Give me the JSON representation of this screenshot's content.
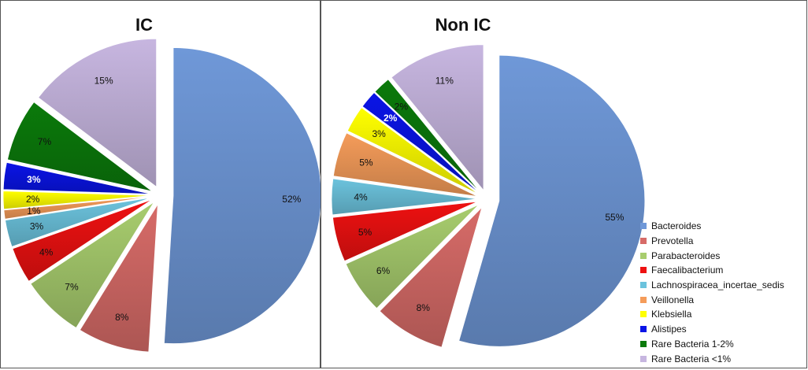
{
  "chart_data": [
    {
      "type": "pie",
      "title": "IC",
      "categories": [
        "Bacteroides",
        "Prevotella",
        "Parabacteroides",
        "Faecalibacterium",
        "Lachnospiracea_incertae_sedis",
        "Veillonella",
        "Klebsiella",
        "Alistipes",
        "Rare Bacteria 1-2%",
        "Rare Bacteria <1%"
      ],
      "values": [
        52,
        8,
        7,
        4,
        3,
        1,
        2,
        3,
        7,
        15
      ],
      "labels": [
        "52%",
        "8%",
        "7%",
        "4%",
        "3%",
        "1%",
        "2%",
        "3%",
        "7%",
        "15%"
      ],
      "exploded": true
    },
    {
      "type": "pie",
      "title": "Non IC",
      "categories": [
        "Bacteroides",
        "Prevotella",
        "Parabacteroides",
        "Faecalibacterium",
        "Lachnospiracea_incertae_sedis",
        "Veillonella",
        "Klebsiella",
        "Alistipes",
        "Rare Bacteria 1-2%",
        "Rare Bacteria <1%"
      ],
      "values": [
        55,
        8,
        6,
        5,
        4,
        5,
        3,
        2,
        2,
        11
      ],
      "labels": [
        "55%",
        "8%",
        "6%",
        "5%",
        "4%",
        "5%",
        "3%",
        "2%",
        "2%",
        "11%"
      ],
      "exploded": true
    }
  ],
  "legend": {
    "placement": "bottom-right",
    "items": [
      {
        "label": "Bacteroides",
        "color": "#6f98d8"
      },
      {
        "label": "Prevotella",
        "color": "#d76b68"
      },
      {
        "label": "Parabacteroides",
        "color": "#a8cd6e"
      },
      {
        "label": "Faecalibacterium",
        "color": "#ee1111"
      },
      {
        "label": "Lachnospiracea_incertae_sedis",
        "color": "#6cc3dd"
      },
      {
        "label": "Veillonella",
        "color": "#f59c5a"
      },
      {
        "label": "Klebsiella",
        "color": "#ffff00"
      },
      {
        "label": "Alistipes",
        "color": "#0a14e6"
      },
      {
        "label": " Rare Bacteria 1-2%",
        "color": "#0b7a0b"
      },
      {
        "label": "Rare Bacteria <1%",
        "color": "#c7b6e0"
      }
    ]
  },
  "white_label_categories": [
    "Alistipes"
  ]
}
